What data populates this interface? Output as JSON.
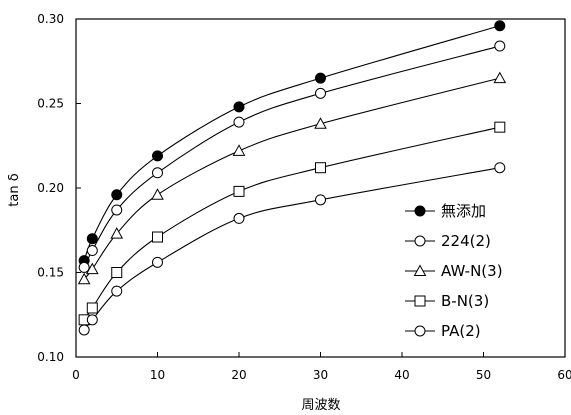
{
  "chart_data": {
    "type": "line",
    "title": "",
    "xlabel": "周波数",
    "ylabel": "tan δ",
    "xlim": [
      0,
      60
    ],
    "ylim": [
      0.1,
      0.3
    ],
    "xticks": [
      0,
      10,
      20,
      30,
      40,
      50,
      60
    ],
    "yticks": [
      "0.10",
      "0.15",
      "0.20",
      "0.25",
      "0.30"
    ],
    "grid": false,
    "legend_position": "bottom-right",
    "series": [
      {
        "name": "無添加",
        "marker": "filled-circle",
        "x": [
          1,
          2,
          5,
          10,
          20,
          30,
          52
        ],
        "y": [
          0.157,
          0.17,
          0.196,
          0.219,
          0.248,
          0.265,
          0.296
        ]
      },
      {
        "name": "224(2)",
        "marker": "open-circle",
        "x": [
          1,
          2,
          5,
          10,
          20,
          30,
          52
        ],
        "y": [
          0.153,
          0.163,
          0.187,
          0.209,
          0.239,
          0.256,
          0.284
        ]
      },
      {
        "name": "AW-N(3)",
        "marker": "open-triangle",
        "x": [
          1,
          2,
          5,
          10,
          20,
          30,
          52
        ],
        "y": [
          0.146,
          0.152,
          0.173,
          0.196,
          0.222,
          0.238,
          0.265
        ]
      },
      {
        "name": "B-N(3)",
        "marker": "open-square",
        "x": [
          1,
          2,
          5,
          10,
          20,
          30,
          52
        ],
        "y": [
          0.122,
          0.129,
          0.15,
          0.171,
          0.198,
          0.212,
          0.236
        ]
      },
      {
        "name": "PA(2)",
        "marker": "open-circle",
        "x": [
          1,
          2,
          5,
          10,
          20,
          30,
          52
        ],
        "y": [
          0.116,
          0.122,
          0.139,
          0.156,
          0.182,
          0.193,
          0.212
        ]
      }
    ]
  }
}
